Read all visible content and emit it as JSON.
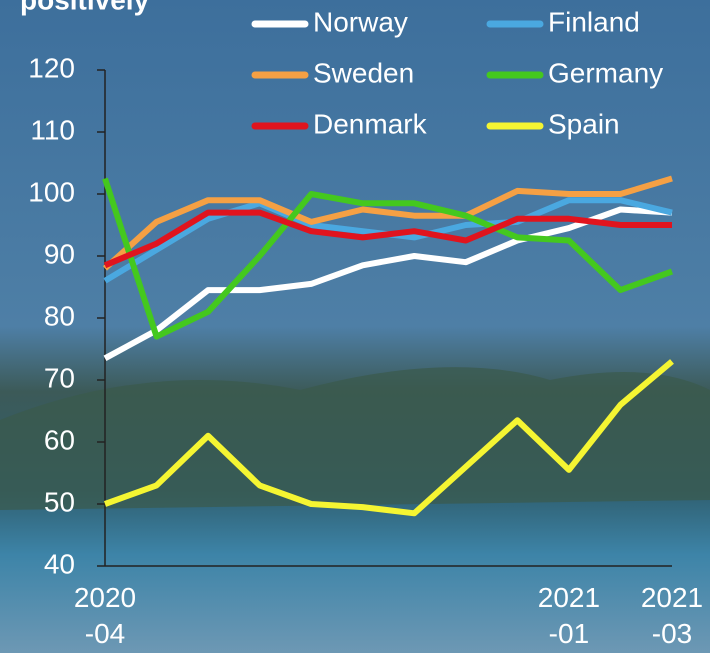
{
  "chart_data": {
    "type": "line",
    "title": "positively",
    "categories": [
      "2020-04",
      null,
      null,
      null,
      null,
      null,
      null,
      null,
      null,
      "2021-01",
      null,
      "2021-03"
    ],
    "series": [
      {
        "name": "Norway",
        "color": "#ffffff",
        "values": [
          73.5,
          78,
          84.5,
          84.5,
          85.5,
          88.5,
          90,
          89,
          92.5,
          94.5,
          97.5,
          97
        ]
      },
      {
        "name": "Finland",
        "color": "#4aa8e0",
        "values": [
          86,
          91,
          96,
          98.5,
          95,
          94,
          93,
          95,
          95.5,
          99,
          99,
          97
        ]
      },
      {
        "name": "Sweden",
        "color": "#f5a044",
        "values": [
          88,
          95.5,
          99,
          99,
          95.5,
          97.5,
          96.5,
          96.5,
          100.5,
          100,
          100,
          102.5
        ]
      },
      {
        "name": "Germany",
        "color": "#44c81e",
        "values": [
          102.5,
          77,
          81,
          90,
          100,
          98.5,
          98.5,
          96.5,
          93,
          92.5,
          84.5,
          87.5
        ]
      },
      {
        "name": "Denmark",
        "color": "#e0141e",
        "values": [
          88.5,
          92,
          97,
          97,
          94,
          93,
          94,
          92.5,
          96,
          96,
          95,
          95
        ]
      },
      {
        "name": "Spain",
        "color": "#f5f532",
        "values": [
          50,
          53,
          61,
          53,
          50,
          49.5,
          48.5,
          56,
          63.5,
          55.5,
          66,
          73
        ]
      }
    ],
    "ylim": [
      40,
      120
    ],
    "yticks": [
      40,
      50,
      60,
      70,
      80,
      90,
      100,
      110,
      120
    ]
  }
}
